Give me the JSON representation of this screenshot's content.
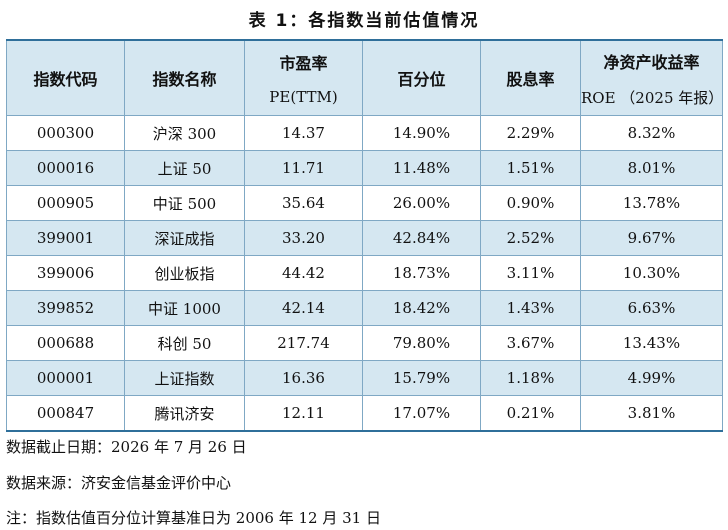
{
  "title": "表 1：各指数当前估值情况",
  "table": {
    "headers": [
      {
        "main": "指数代码",
        "sub": ""
      },
      {
        "main": "指数名称",
        "sub": ""
      },
      {
        "main": "市盈率",
        "sub": "PE(TTM)"
      },
      {
        "main": "百分位",
        "sub": ""
      },
      {
        "main": "股息率",
        "sub": ""
      },
      {
        "main": "净资产收益率",
        "sub": "ROE （2025 年报）"
      }
    ],
    "rows": [
      [
        "000300",
        "沪深 300",
        "14.37",
        "14.90%",
        "2.29%",
        "8.32%"
      ],
      [
        "000016",
        "上证 50",
        "11.71",
        "11.48%",
        "1.51%",
        "8.01%"
      ],
      [
        "000905",
        "中证 500",
        "35.64",
        "26.00%",
        "0.90%",
        "13.78%"
      ],
      [
        "399001",
        "深证成指",
        "33.20",
        "42.84%",
        "2.52%",
        "9.67%"
      ],
      [
        "399006",
        "创业板指",
        "44.42",
        "18.73%",
        "3.11%",
        "10.30%"
      ],
      [
        "399852",
        "中证 1000",
        "42.14",
        "18.42%",
        "1.43%",
        "6.63%"
      ],
      [
        "000688",
        "科创 50",
        "217.74",
        "79.80%",
        "3.67%",
        "13.43%"
      ],
      [
        "000001",
        "上证指数",
        "16.36",
        "15.79%",
        "1.18%",
        "4.99%"
      ],
      [
        "000847",
        "腾讯济安",
        "12.11",
        "17.07%",
        "0.21%",
        "3.81%"
      ]
    ]
  },
  "notes": {
    "cutoff": "数据截止日期：2026 年 7 月 26 日",
    "source": "数据来源：济安金信基金评价中心",
    "footnote": "注：指数估值百分位计算基准日为 2006 年 12 月 31 日"
  }
}
